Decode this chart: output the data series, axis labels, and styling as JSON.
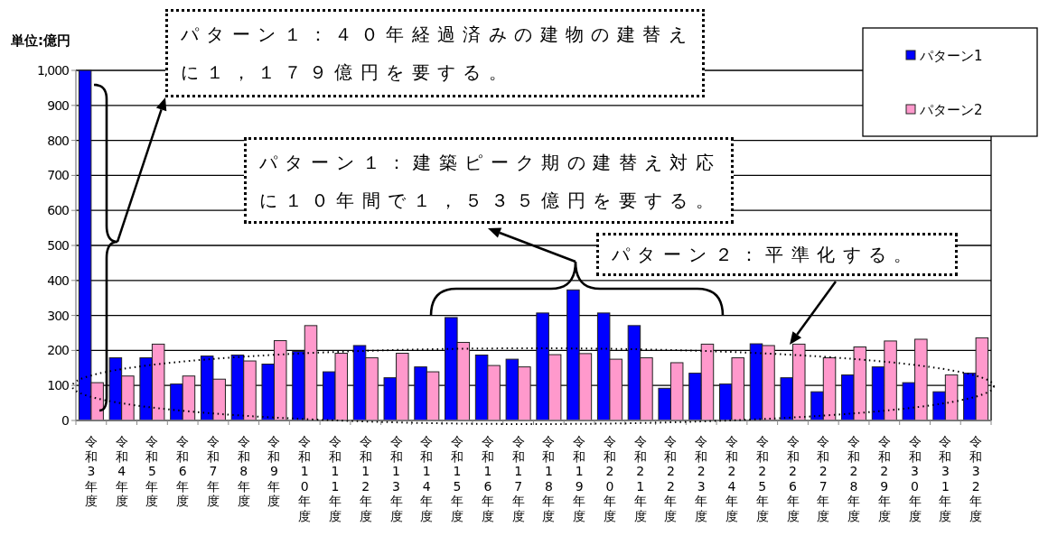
{
  "chart_data": {
    "type": "bar",
    "ylabel": "単位:億円",
    "categories": [
      "令和3年度",
      "令和4年度",
      "令和5年度",
      "令和6年度",
      "令和7年度",
      "令和8年度",
      "令和9年度",
      "令和10年度",
      "令和11年度",
      "令和12年度",
      "令和13年度",
      "令和14年度",
      "令和15年度",
      "令和16年度",
      "令和17年度",
      "令和18年度",
      "令和19年度",
      "令和20年度",
      "令和21年度",
      "令和22年度",
      "令和23年度",
      "令和24年度",
      "令和25年度",
      "令和26年度",
      "令和27年度",
      "令和28年度",
      "令和29年度",
      "令和30年度",
      "令和31年度",
      "令和32年度"
    ],
    "series": [
      {
        "name": "パターン1",
        "color": "#0000ff",
        "values": [
          1000,
          179,
          179,
          104,
          184,
          187,
          161,
          197,
          139,
          214,
          122,
          153,
          294,
          187,
          175,
          307,
          373,
          307,
          271,
          92,
          135,
          104,
          219,
          122,
          82,
          130,
          153,
          108,
          82,
          135
        ]
      },
      {
        "name": "パターン2",
        "color": "#ff99cc",
        "values": [
          108,
          127,
          218,
          127,
          118,
          170,
          228,
          271,
          192,
          179,
          192,
          139,
          223,
          157,
          153,
          188,
          191,
          175,
          179,
          165,
          218,
          179,
          214,
          218,
          179,
          210,
          227,
          232,
          130,
          236
        ]
      }
    ],
    "ylim": [
      0,
      1000
    ],
    "yticks": [
      0,
      100,
      200,
      300,
      400,
      500,
      600,
      700,
      800,
      900,
      {
        "value": 1000,
        "label": "1,000"
      }
    ],
    "grid": "y",
    "legend": "top right",
    "annotations": [
      "パターン１：４０年経過済みの建物の建替えに１，１７９億円を要する。",
      "パターン１：建築ピーク期の建替え対応に１０年間で１，５３５億円を要する。",
      "パターン２：平準化する。"
    ]
  }
}
